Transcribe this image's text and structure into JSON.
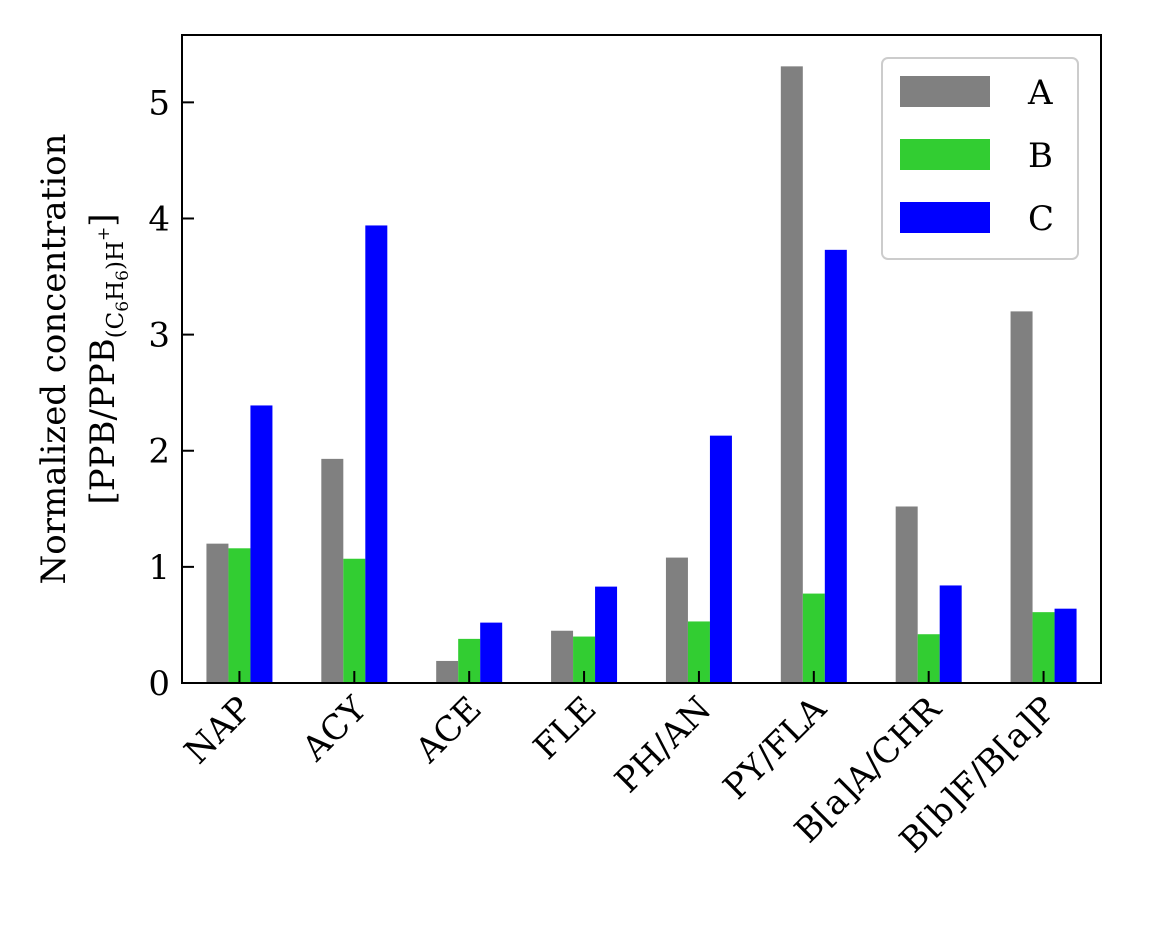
{
  "chart_data": {
    "type": "bar",
    "categories": [
      "NAP",
      "ACY",
      "ACE",
      "FLE",
      "PH/AN",
      "PY/FLA",
      "B[a]A/CHR",
      "B[b]F/B[a]P"
    ],
    "series": [
      {
        "name": "A",
        "color": "#808080",
        "values": [
          1.2,
          1.93,
          0.19,
          0.45,
          1.08,
          5.31,
          1.52,
          3.2
        ]
      },
      {
        "name": "B",
        "color": "#32cd32",
        "values": [
          1.16,
          1.07,
          0.38,
          0.4,
          0.53,
          0.77,
          0.42,
          0.61
        ]
      },
      {
        "name": "C",
        "color": "#0000ff",
        "values": [
          2.39,
          3.94,
          0.52,
          0.83,
          2.13,
          3.73,
          0.84,
          0.64
        ]
      }
    ],
    "ylabel_line1": "Normalized concentration",
    "ylabel_line2_prefix": "[PPB/PPB",
    "ylabel_sub_open": "(C",
    "ylabel_sub_6a": "6",
    "ylabel_sub_h": "H",
    "ylabel_sub_6b": "6",
    "ylabel_sub_close": ")H",
    "ylabel_sup_plus": "+",
    "ylabel_close": "]",
    "ylim": [
      0,
      5.58
    ],
    "yticks": [
      0,
      1,
      2,
      3,
      4,
      5
    ],
    "ytick_labels": [
      "0",
      "1",
      "2",
      "3",
      "4",
      "5"
    ],
    "legend_position": "top-right",
    "grid": false
  }
}
